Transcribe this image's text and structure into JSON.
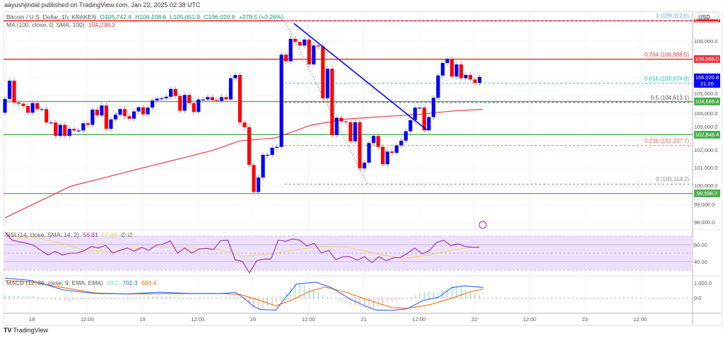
{
  "header": {
    "published": "aayushjindal published on TradingView.com, Jan 22, 2025 02:38 UTC"
  },
  "legend": {
    "symbol": "Bitcoin / U.S. Dollar, 1h, KRAKEN",
    "open": "O105,742.4",
    "high": "H106,108.6",
    "low": "L105,651.0",
    "close": "C106,020.8",
    "change": "+278.5 (+0.26%)",
    "ma_label": "MA (100, close, 0, SMA, 100)",
    "ma_value": "104,238.3",
    "rsi_label": "RSI (14, close, SMA, 14, 2)",
    "rsi_value": "56.81",
    "rsi_sma_value": "57.80",
    "rsi_extra": "∅ ∅",
    "macd_label": "MACD (12, 26, close, 9, EMA, EMA)",
    "macd_hist": "99.0",
    "macd_value": "702.3",
    "macd_signal": "603.4"
  },
  "price_axis": {
    "currency": "USD",
    "ticks": [
      "108,000.0",
      "105,000.0",
      "104,000.0",
      "103,000.0",
      "102,000.0",
      "101,000.0",
      "100,000.0",
      "99,000.0",
      "98,000.0"
    ],
    "tags": [
      {
        "text": "106,996.0",
        "color": "#f23645"
      },
      {
        "text": "104,666.4",
        "color": "#4caf50"
      },
      {
        "text": "102,846.4",
        "color": "#4caf50"
      },
      {
        "text": "99,598.7",
        "color": "#4caf50"
      }
    ],
    "last_price": "106,020.8",
    "countdown": "21:26",
    "last_color": "#0000ff"
  },
  "rsi_axis": [
    "60.00",
    "40.00"
  ],
  "macd_axis": [
    "1,000.0",
    "0.0"
  ],
  "time_axis": [
    "18",
    "12:00",
    "19",
    "12:00",
    "20",
    "12:00",
    "21",
    "12:00",
    "22",
    "12:00",
    "23",
    "12:00"
  ],
  "fib_levels": [
    {
      "label": "1 (109,112.0)",
      "price": 109112,
      "color": "#5fb3e0"
    },
    {
      "label": "0.764 (106,988.5)",
      "price": 106988.5,
      "color": "#f23645"
    },
    {
      "label": "0.618 (105,674.8)",
      "price": 105674.8,
      "color": "#26c6a0"
    },
    {
      "label": "0.5 (104,613.1)",
      "price": 104613.1,
      "color": "#6d4c5a"
    },
    {
      "label": "0.236 (102,237.7)",
      "price": 102237.7,
      "color": "#f06060"
    },
    {
      "label": "0 (100,114.2)",
      "price": 100114.2,
      "color": "#888888"
    }
  ],
  "horizontal_lines": [
    {
      "price": 109112,
      "color": "#ff0000"
    },
    {
      "price": 106996,
      "color": "#ff0000"
    },
    {
      "price": 104666.4,
      "color": "#4caf50"
    },
    {
      "price": 102846.4,
      "color": "#4caf50"
    },
    {
      "price": 99598.7,
      "color": "#4caf50"
    }
  ],
  "colors": {
    "up": "#0000ff",
    "down": "#ff0000",
    "ma": "#f23645",
    "trendline": "#0000ff",
    "rsi": "#9c27b0",
    "rsi_sma": "#f6d55c",
    "macd": "#2962ff",
    "signal": "#ff6d00",
    "rsi_band": "#ede0fb"
  },
  "chart_data": {
    "type": "candlestick",
    "interval": "1h",
    "first_open": 104050,
    "closes": [
      104810,
      105810,
      104610,
      104550,
      104420,
      104050,
      104580,
      104250,
      104250,
      103510,
      103510,
      102770,
      103380,
      102770,
      103160,
      103070,
      103070,
      103470,
      103380,
      104220,
      103900,
      104450,
      103160,
      103680,
      103940,
      104250,
      103860,
      103720,
      104120,
      104350,
      103960,
      104330,
      104720,
      104830,
      104840,
      104930,
      105360,
      104970,
      104160,
      105030,
      104580,
      104090,
      104780,
      104780,
      104910,
      104740,
      104700,
      104910,
      104780,
      105950,
      106130,
      103510,
      103250,
      101170,
      99680,
      100480,
      101730,
      101730,
      102120,
      102170,
      107250,
      106880,
      108120,
      107950,
      107750,
      108080,
      106710,
      107750,
      107700,
      104840,
      106470,
      102820,
      103770,
      103570,
      103530,
      102470,
      103530,
      100980,
      101300,
      102380,
      102770,
      102170,
      101210,
      101910,
      101840,
      102250,
      102510,
      103030,
      103640,
      104330,
      104330,
      103080,
      103810,
      104870,
      106100,
      106790,
      107010,
      106040,
      106710,
      105950,
      106130,
      105880,
      105690,
      106020
    ],
    "ma100": [
      [
        0,
        98260
      ],
      [
        14.3,
        100000
      ],
      [
        29.6,
        100990
      ],
      [
        44.9,
        101960
      ],
      [
        51,
        102500
      ],
      [
        58.7,
        102660
      ],
      [
        66.4,
        103360
      ],
      [
        74,
        103700
      ],
      [
        81.7,
        103830
      ],
      [
        89.4,
        103950
      ],
      [
        97,
        104140
      ],
      [
        103.7,
        104238
      ]
    ],
    "trendline": [
      [
        62.7,
        108970
      ],
      [
        91.6,
        103090
      ]
    ],
    "fib_anchor": [
      [
        60.7,
        109112
      ],
      [
        78.7,
        100114.2
      ]
    ],
    "ylim": [
      97600,
      109500
    ],
    "rsi": [
      75,
      65.3,
      63.3,
      61.7,
      59.2,
      53.3,
      47.8,
      52,
      47.8,
      50,
      50,
      52.8,
      57.8,
      56.1,
      59.2,
      50,
      53.3,
      56.1,
      52.2,
      56.9,
      53.3,
      59.2,
      60.6,
      64.4,
      50,
      56.1,
      50,
      55,
      55.6,
      54.2,
      64.7,
      65.3,
      42.2,
      40.3,
      26.9,
      41.1,
      43.1,
      43.1,
      65.3,
      63.9,
      66.7,
      65.3,
      58.3,
      61.7,
      50,
      53.3,
      42.2,
      45.8,
      45.8,
      41.7,
      45.8,
      38.9,
      45.8,
      41.1,
      44.4,
      45,
      50,
      56.1,
      49.2,
      52.8,
      62.5,
      65.3,
      58.9,
      61.1,
      57.8,
      56.9,
      56.81
    ],
    "rsi_sma": [
      70.8,
      69.4,
      62.5,
      54,
      52,
      55.6,
      57.5,
      56,
      55,
      46.4,
      48.6,
      54,
      57.8,
      57,
      50,
      43.9,
      47.2,
      54,
      57.8
    ],
    "rsi_bands": [
      70,
      60,
      50,
      40,
      30
    ],
    "macd": [
      [
        0,
        1309
      ],
      [
        5.8,
        1155
      ],
      [
        12.7,
        539
      ],
      [
        19.6,
        308
      ],
      [
        26.5,
        277
      ],
      [
        33.4,
        385
      ],
      [
        40.2,
        308
      ],
      [
        47.1,
        308
      ],
      [
        49.9,
        385
      ],
      [
        51.9,
        0
      ],
      [
        54,
        -539
      ],
      [
        55.4,
        -739
      ],
      [
        58.8,
        -770
      ],
      [
        61.2,
        154
      ],
      [
        63.3,
        924
      ],
      [
        67.4,
        1047
      ],
      [
        70.8,
        693
      ],
      [
        75,
        -77
      ],
      [
        78.4,
        -539
      ],
      [
        80.5,
        -770
      ],
      [
        84,
        -800
      ],
      [
        87.3,
        -693
      ],
      [
        90.7,
        -154
      ],
      [
        94.2,
        77
      ],
      [
        97,
        693
      ],
      [
        99.7,
        800
      ],
      [
        103.8,
        702.3
      ]
    ],
    "signal": [
      [
        0,
        1155
      ],
      [
        5.8,
        1047
      ],
      [
        12.7,
        693
      ],
      [
        19.6,
        339
      ],
      [
        26.5,
        277
      ],
      [
        47.1,
        308
      ],
      [
        51.2,
        231
      ],
      [
        55.4,
        -154
      ],
      [
        58.8,
        -493
      ],
      [
        62.6,
        -77
      ],
      [
        66,
        431
      ],
      [
        69.5,
        724
      ],
      [
        73.6,
        431
      ],
      [
        78.4,
        -77
      ],
      [
        84,
        -616
      ],
      [
        87.3,
        -662
      ],
      [
        92.1,
        -431
      ],
      [
        97,
        0
      ],
      [
        101.1,
        431
      ],
      [
        103.8,
        603.4
      ]
    ]
  },
  "footer": {
    "logo_text": "TradingView",
    "logo_mark": "TV"
  }
}
